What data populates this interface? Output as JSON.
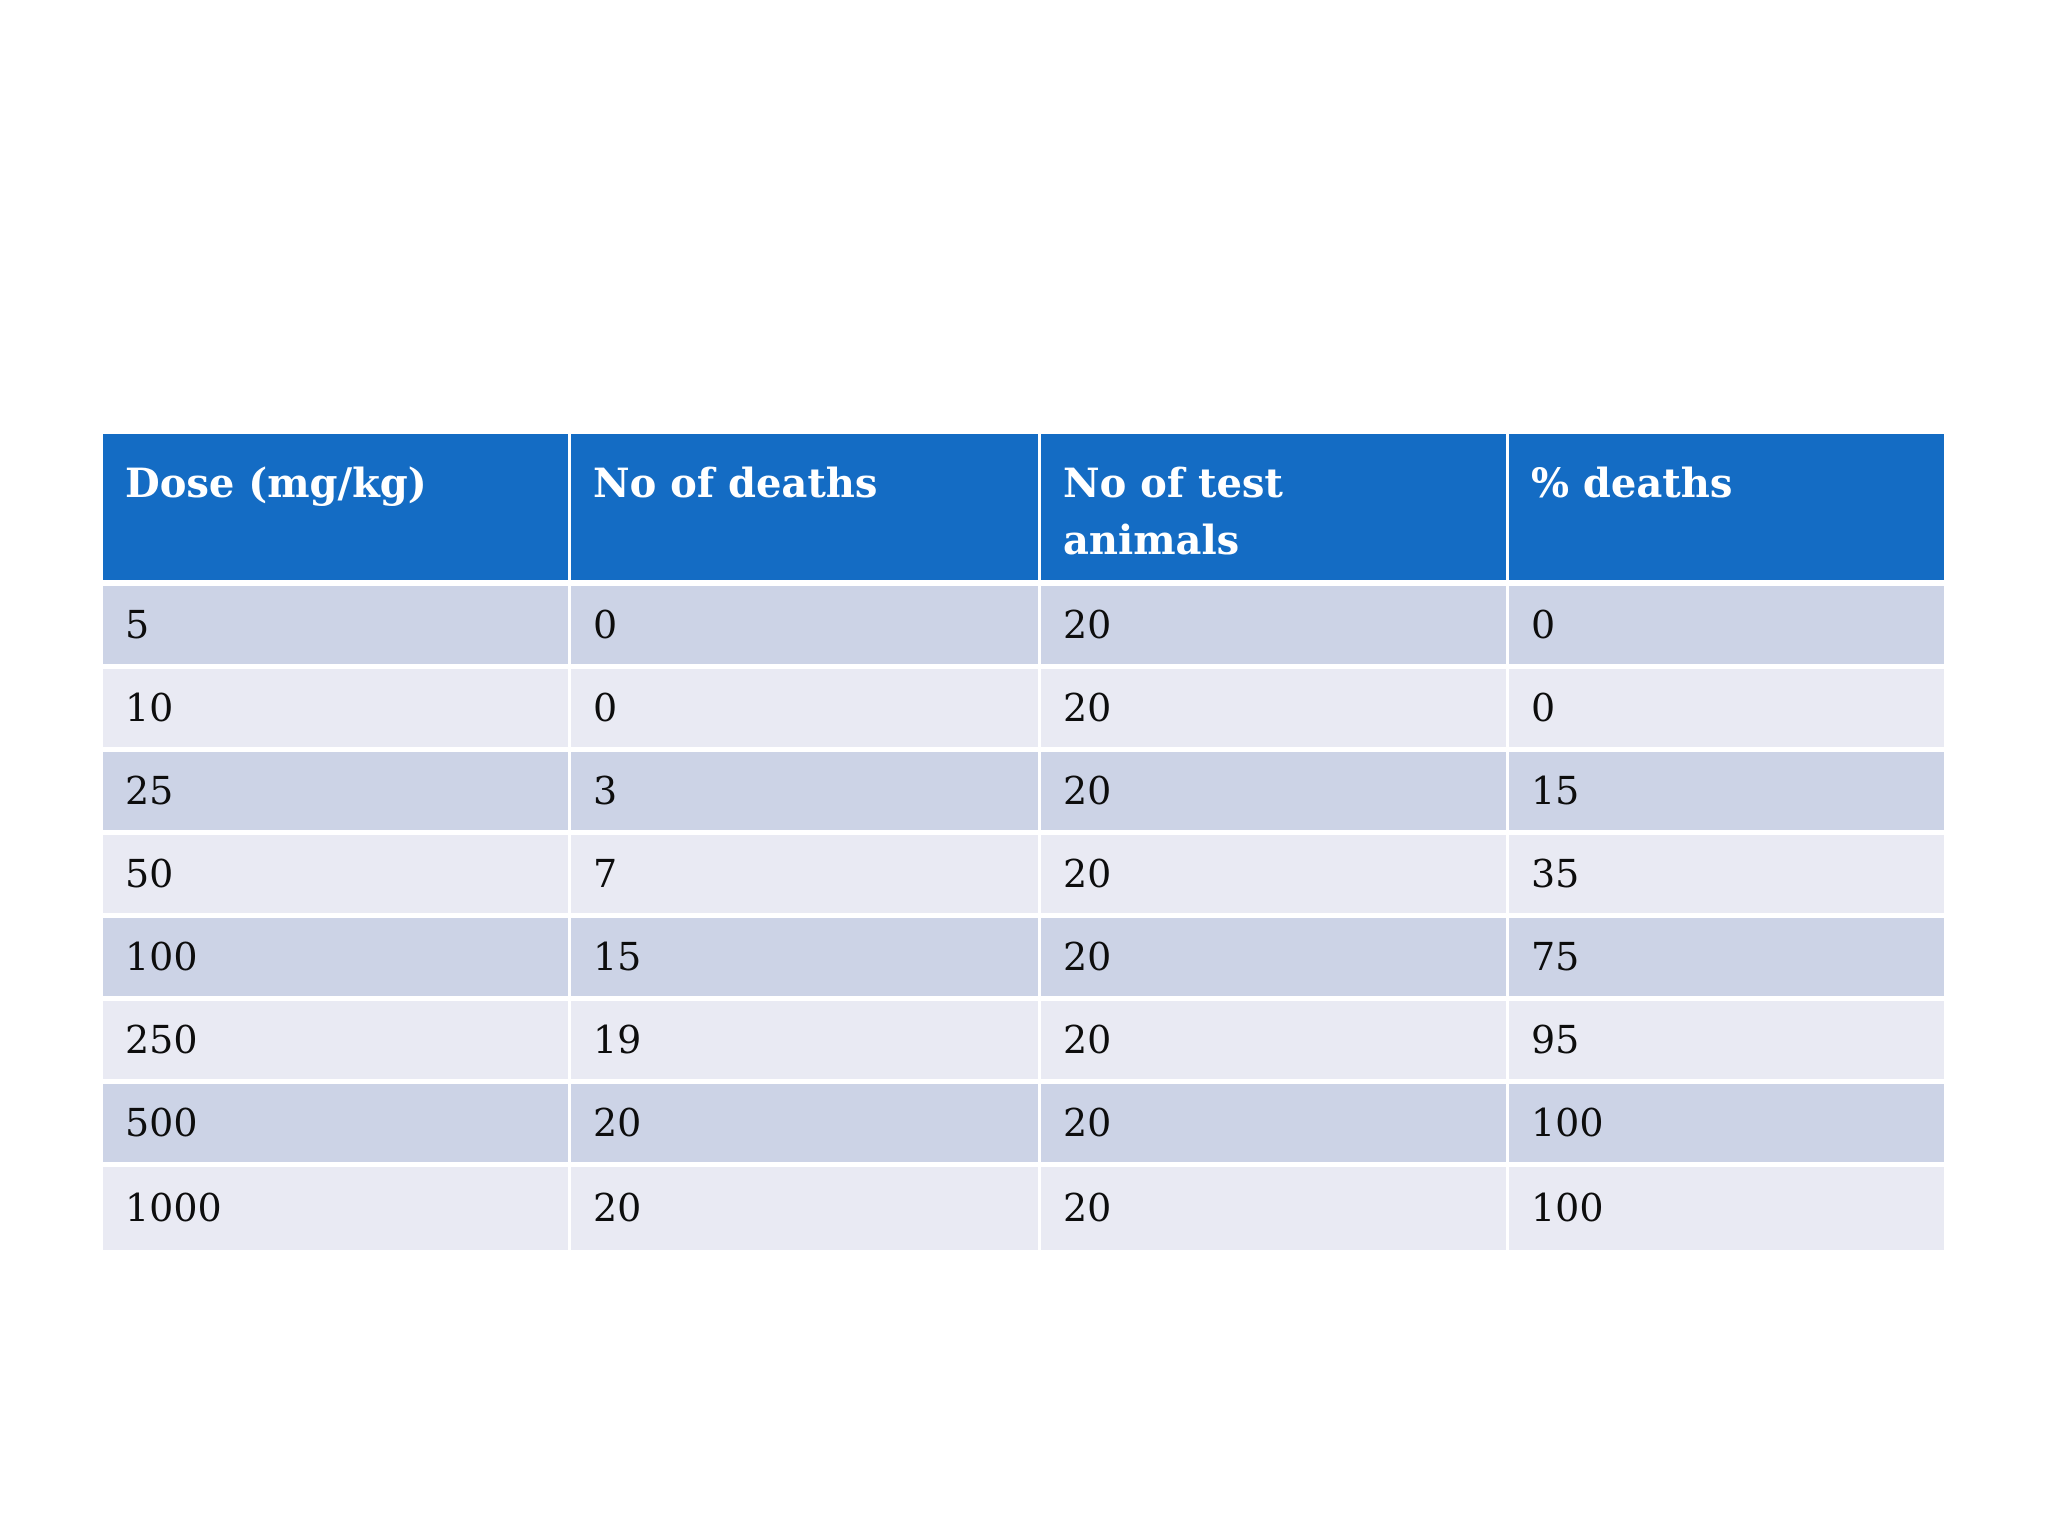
{
  "table": {
    "headers": [
      "Dose (mg/kg)",
      "No of deaths",
      "No of test\nanimals",
      "% deaths"
    ],
    "rows": [
      [
        "5",
        "0",
        "20",
        "0"
      ],
      [
        "10",
        "0",
        "20",
        "0"
      ],
      [
        "25",
        "3",
        "20",
        "15"
      ],
      [
        "50",
        "7",
        "20",
        "35"
      ],
      [
        "100",
        "15",
        "20",
        "75"
      ],
      [
        "250",
        "19",
        "20",
        "95"
      ],
      [
        "500",
        "20",
        "20",
        "100"
      ],
      [
        "1000",
        "20",
        "20",
        "100"
      ]
    ],
    "colors": {
      "header_bg": "#146CC4",
      "header_text": "#FFFFFF",
      "row_dark": "#CCD3E6",
      "row_light": "#E9EAF3",
      "cell_text": "#0D0D0D",
      "separator": "#FFFFFF"
    }
  },
  "chart_data": {
    "type": "table",
    "columns": [
      "Dose (mg/kg)",
      "No of deaths",
      "No of test animals",
      "% deaths"
    ],
    "rows": [
      [
        5,
        0,
        20,
        0
      ],
      [
        10,
        0,
        20,
        0
      ],
      [
        25,
        3,
        20,
        15
      ],
      [
        50,
        7,
        20,
        35
      ],
      [
        100,
        15,
        20,
        75
      ],
      [
        250,
        19,
        20,
        95
      ],
      [
        500,
        20,
        20,
        100
      ],
      [
        1000,
        20,
        20,
        100
      ]
    ]
  }
}
